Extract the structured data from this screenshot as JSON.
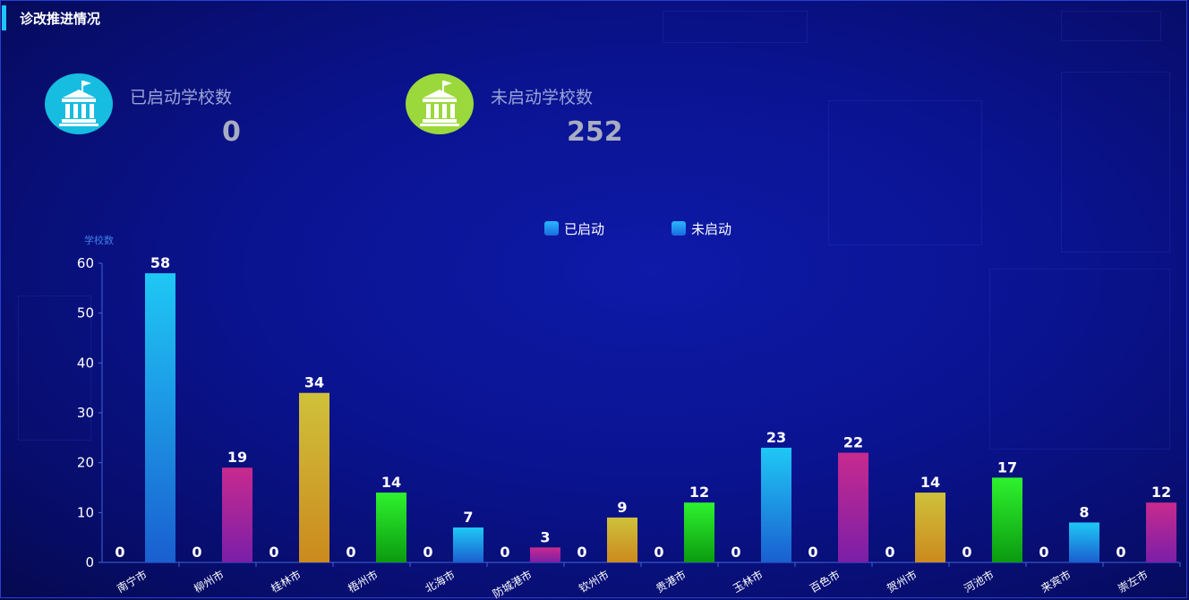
{
  "header": {
    "title": "诊改推进情况"
  },
  "stats": [
    {
      "label": "已启动学校数",
      "value": "0",
      "icon": "school-building-icon",
      "color": "#16bde0"
    },
    {
      "label": "未启动学校数",
      "value": "252",
      "icon": "school-building-icon",
      "color": "#9bd83c"
    }
  ],
  "chart_data": {
    "type": "bar",
    "ylabel": "学校数",
    "ylim": [
      0,
      60
    ],
    "yticks": [
      0,
      10,
      20,
      30,
      40,
      50,
      60
    ],
    "legend": "top-center",
    "categories": [
      "南宁市",
      "柳州市",
      "桂林市",
      "梧州市",
      "北海市",
      "防城港市",
      "钦州市",
      "贵港市",
      "玉林市",
      "百色市",
      "贺州市",
      "河池市",
      "来宾市",
      "崇左市"
    ],
    "series": [
      {
        "name": "已启动",
        "values": [
          0,
          0,
          0,
          0,
          0,
          0,
          0,
          0,
          0,
          0,
          0,
          0,
          0,
          0
        ]
      },
      {
        "name": "未启动",
        "values": [
          58,
          19,
          34,
          14,
          7,
          3,
          9,
          12,
          23,
          22,
          14,
          17,
          8,
          12
        ]
      }
    ],
    "bar_gradients": [
      [
        "#1fc8f5",
        "#1a5fd0"
      ],
      [
        "#c82a8e",
        "#7a1fa8"
      ],
      [
        "#cfc13a",
        "#cc8a1e"
      ],
      [
        "#2ef22e",
        "#0b9a10"
      ]
    ]
  }
}
